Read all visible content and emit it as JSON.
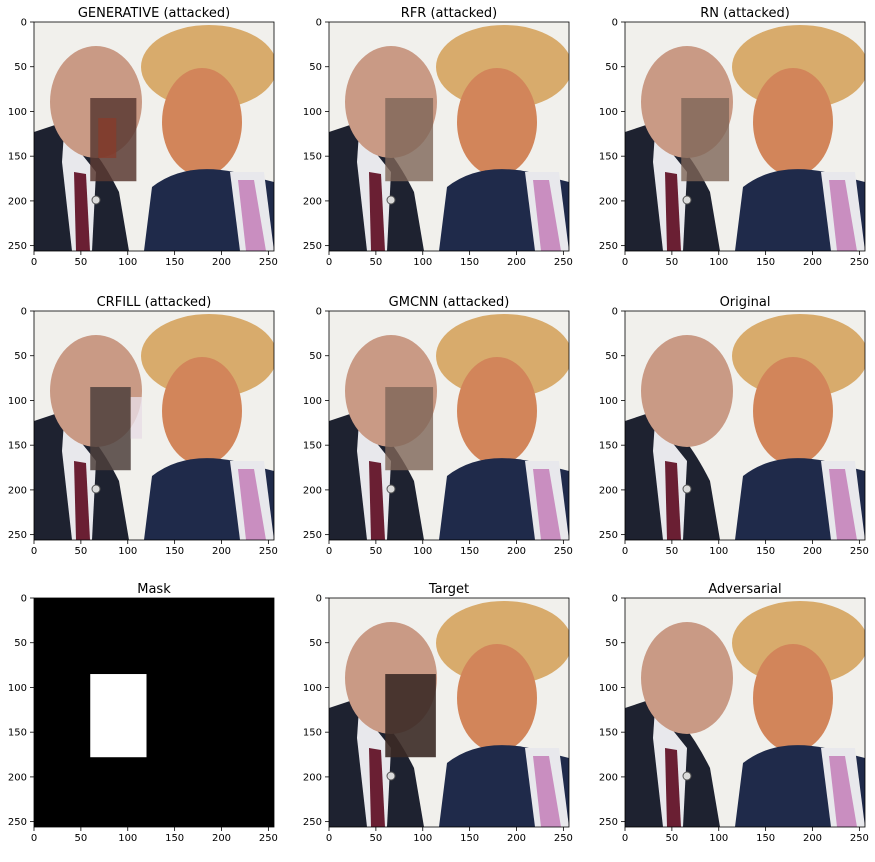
{
  "panels": [
    {
      "title": "GENERATIVE (attacked)",
      "kind": "photo",
      "region": "generative"
    },
    {
      "title": "RFR (attacked)",
      "kind": "photo",
      "region": "smooth"
    },
    {
      "title": "RN (attacked)",
      "kind": "photo",
      "region": "smooth"
    },
    {
      "title": "CRFILL (attacked)",
      "kind": "photo",
      "region": "crfill"
    },
    {
      "title": "GMCNN (attacked)",
      "kind": "photo",
      "region": "smooth"
    },
    {
      "title": "Original",
      "kind": "photo",
      "region": "none"
    },
    {
      "title": "Mask",
      "kind": "mask",
      "region": "mask"
    },
    {
      "title": "Target",
      "kind": "photo",
      "region": "target"
    },
    {
      "title": "Adversarial",
      "kind": "photo",
      "region": "none"
    }
  ],
  "axes": {
    "x_ticks": [
      "0",
      "50",
      "100",
      "150",
      "200",
      "250"
    ],
    "y_ticks": [
      "0",
      "50",
      "100",
      "150",
      "200",
      "250"
    ],
    "tick_values": [
      0,
      50,
      100,
      150,
      200,
      250
    ],
    "range": [
      0,
      256
    ],
    "mask_rect": [
      60,
      85,
      120,
      178
    ]
  },
  "colors": {
    "background": "#f1f0ec",
    "suit": "#1e2230",
    "suit_right": "#1f2a4a",
    "skin_left": "#c99a85",
    "skin_right": "#d2855a",
    "hair_right": "#d8ab6c",
    "tie_left": "#6a1f33",
    "tie_right": "#c98ec0",
    "shirt": "#e8e8ec"
  }
}
